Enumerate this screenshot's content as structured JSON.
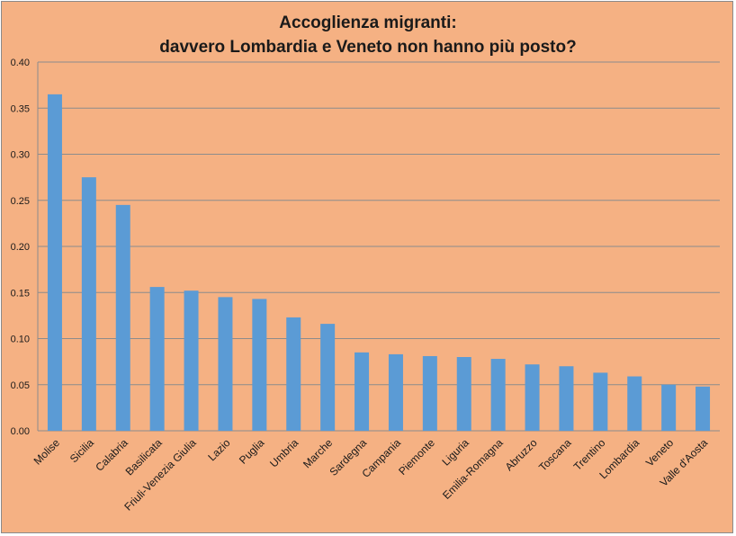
{
  "chart_data": {
    "type": "bar",
    "title": "Accoglienza migranti:",
    "subtitle": "davvero Lombardia e Veneto non hanno più posto?",
    "xlabel": "",
    "ylabel": "",
    "ylim": [
      0,
      0.4
    ],
    "yticks": [
      "0.00",
      "0.05",
      "0.10",
      "0.15",
      "0.20",
      "0.25",
      "0.30",
      "0.35",
      "0.40"
    ],
    "grid": true,
    "bar_color": "#5b9bd5",
    "background_color": "#f5b183",
    "categories": [
      "Molise",
      "Sicilia",
      "Calabria",
      "Basilicata",
      "Friuli-Venezia Giulia",
      "Lazio",
      "Puglia",
      "Umbria",
      "Marche",
      "Sardegna",
      "Campania",
      "Piemonte",
      "Liguria",
      "Emilia-Romagna",
      "Abruzzo",
      "Toscana",
      "Trentino",
      "Lombardia",
      "Veneto",
      "Valle d'Aosta"
    ],
    "values": [
      0.365,
      0.275,
      0.245,
      0.156,
      0.152,
      0.145,
      0.143,
      0.123,
      0.116,
      0.085,
      0.083,
      0.081,
      0.08,
      0.078,
      0.072,
      0.07,
      0.063,
      0.059,
      0.05,
      0.048
    ]
  }
}
